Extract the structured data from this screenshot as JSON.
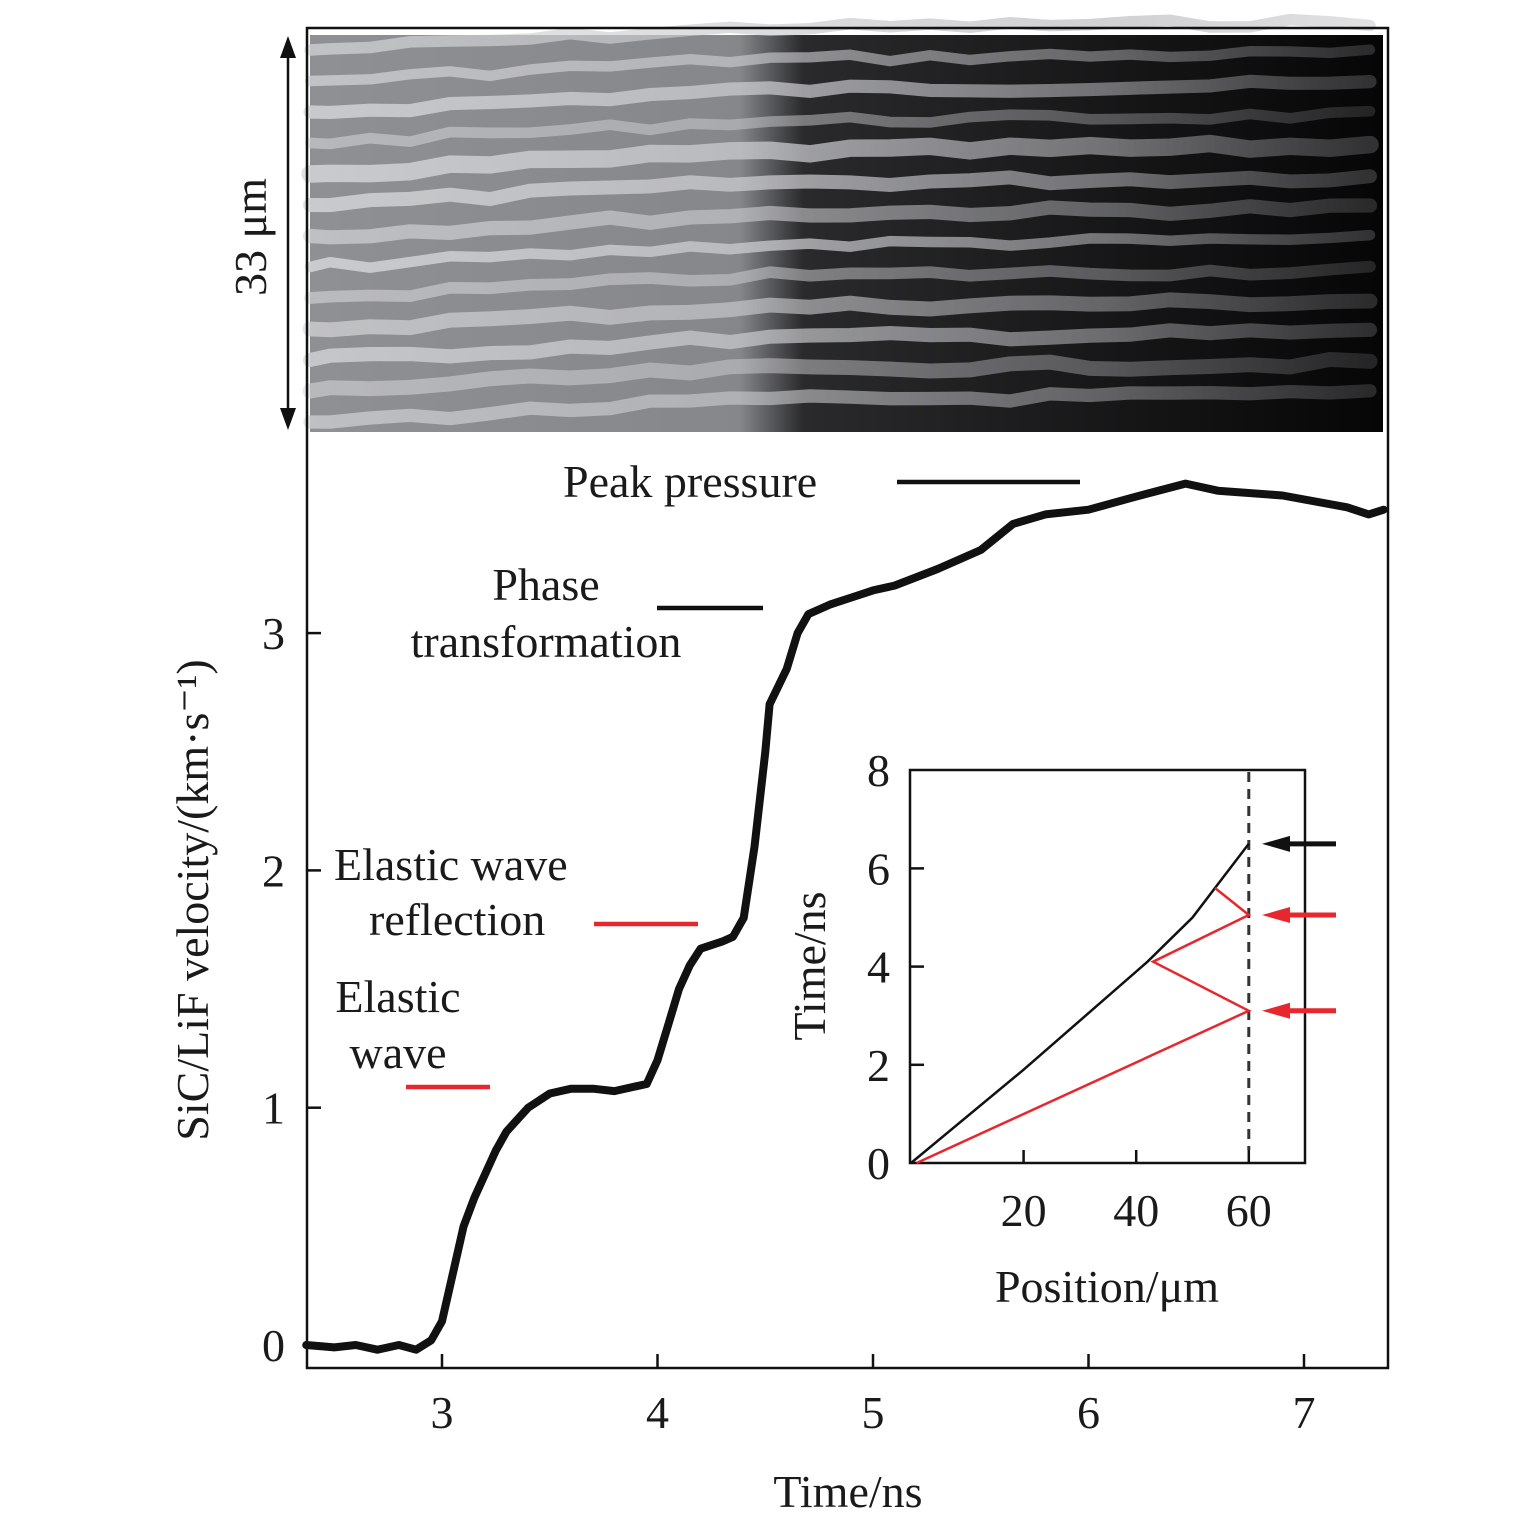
{
  "chart_data": {
    "type": "line",
    "title": "",
    "xlabel": "Time/ns",
    "ylabel": "SiC/LiF velocity/(km·s⁻¹)",
    "xlim": [
      2.37,
      7.38
    ],
    "ylim": [
      -0.1,
      5.56
    ],
    "xticks": [
      3,
      4,
      5,
      6,
      7
    ],
    "yticks": [
      0,
      1,
      2,
      3
    ],
    "grid": false,
    "image_band_label": "33 μm",
    "colors": {
      "curve": "#111111",
      "red": "#e8262e",
      "black": "#111111"
    },
    "series": [
      {
        "name": "SiC/LiF velocity",
        "x": [
          2.37,
          2.5,
          2.6,
          2.7,
          2.8,
          2.88,
          2.95,
          3.0,
          3.05,
          3.1,
          3.15,
          3.2,
          3.25,
          3.3,
          3.4,
          3.5,
          3.6,
          3.7,
          3.8,
          3.9,
          3.95,
          4.0,
          4.05,
          4.1,
          4.15,
          4.2,
          4.3,
          4.35,
          4.4,
          4.45,
          4.5,
          4.52,
          4.6,
          4.65,
          4.7,
          4.8,
          4.9,
          5.0,
          5.1,
          5.3,
          5.5,
          5.65,
          5.8,
          6.0,
          6.2,
          6.45,
          6.6,
          6.9,
          7.2,
          7.3,
          7.37
        ],
        "y": [
          0,
          -0.01,
          0,
          -0.02,
          0,
          -0.02,
          0.02,
          0.1,
          0.3,
          0.5,
          0.62,
          0.72,
          0.82,
          0.9,
          1.0,
          1.06,
          1.08,
          1.08,
          1.07,
          1.09,
          1.1,
          1.2,
          1.35,
          1.5,
          1.6,
          1.67,
          1.7,
          1.72,
          1.8,
          2.1,
          2.5,
          2.7,
          2.85,
          3.0,
          3.08,
          3.12,
          3.15,
          3.18,
          3.2,
          3.27,
          3.35,
          3.46,
          3.5,
          3.52,
          3.57,
          3.63,
          3.6,
          3.58,
          3.53,
          3.5,
          3.52
        ]
      }
    ],
    "annotations": [
      {
        "lines": [
          "Peak pressure"
        ],
        "level": 3.63,
        "color": "#111111"
      },
      {
        "lines": [
          "Phase",
          "transformation"
        ],
        "level": 3.1,
        "color": "#111111"
      },
      {
        "lines": [
          "Elastic wave",
          "reflection"
        ],
        "level": 1.7,
        "color": "#e8262e"
      },
      {
        "lines": [
          "Elastic",
          "wave"
        ],
        "level": 1.08,
        "color": "#e8262e"
      }
    ],
    "inset": {
      "type": "line",
      "xlabel": "Position/μm",
      "ylabel": "Time/ns",
      "xlim": [
        0,
        70
      ],
      "ylim": [
        0,
        8
      ],
      "xticks": [
        20,
        40,
        60
      ],
      "yticks": [
        0,
        2,
        4,
        6,
        8
      ],
      "sample_boundary": 60,
      "series": [
        {
          "name": "shock front",
          "color": "#111111",
          "x": [
            0,
            20,
            42,
            50,
            54,
            60
          ],
          "y": [
            0,
            1.9,
            4.1,
            5.0,
            5.6,
            6.5
          ]
        },
        {
          "name": "elastic reflections",
          "color": "#e8262e",
          "x": [
            1,
            60,
            43,
            60,
            54
          ],
          "y": [
            0,
            3.1,
            4.1,
            5.05,
            5.6
          ]
        }
      ],
      "arrows": [
        {
          "time": 6.5,
          "color": "#111111"
        },
        {
          "time": 5.05,
          "color": "#e8262e"
        },
        {
          "time": 3.1,
          "color": "#e8262e"
        }
      ]
    }
  }
}
